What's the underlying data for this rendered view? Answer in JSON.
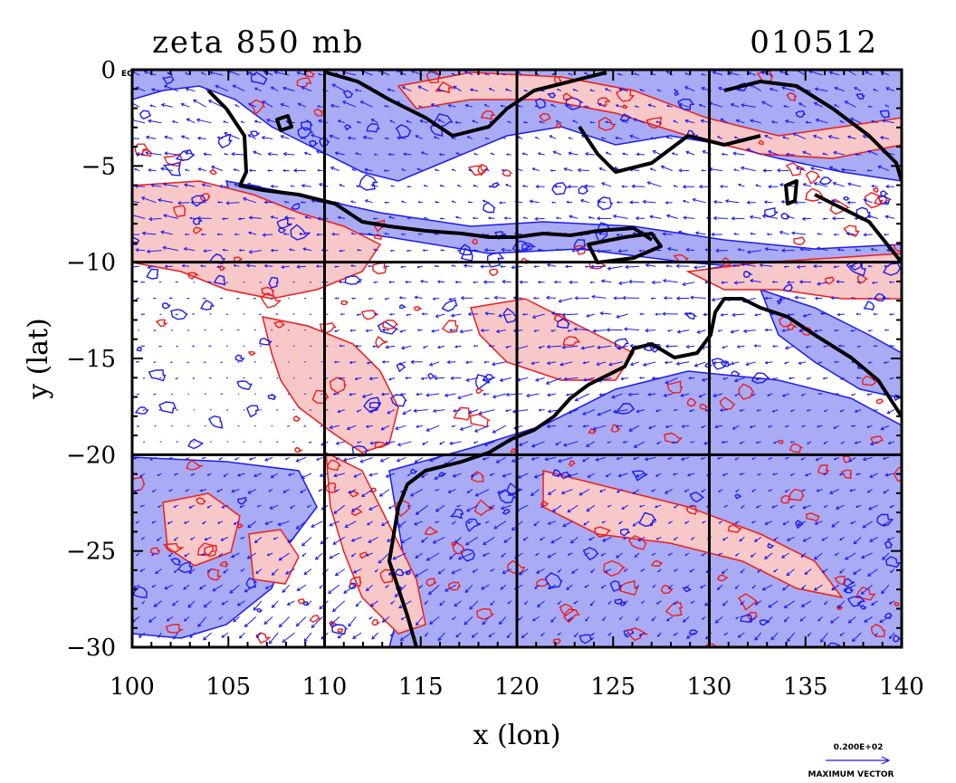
{
  "chart_data": {
    "type": "map",
    "title": "zeta 850 mb",
    "date_label": "010512",
    "xlabel": "x (lon)",
    "ylabel": "y (lat)",
    "xlim": [
      100,
      140
    ],
    "ylim": [
      -30,
      0
    ],
    "x_ticks": [
      100,
      105,
      110,
      115,
      120,
      125,
      130,
      135,
      140
    ],
    "y_ticks": [
      0,
      -5,
      -10,
      -15,
      -20,
      -25,
      -30
    ],
    "x_tick_labels": [
      "100",
      "105",
      "110",
      "115",
      "120",
      "125",
      "130",
      "135",
      "140"
    ],
    "y_tick_labels": [
      "0",
      "−5",
      "−10",
      "−15",
      "−20",
      "−25",
      "−30"
    ],
    "equator_label": "EQ",
    "grid_lon": [
      110,
      120,
      130
    ],
    "grid_lat": [
      -10,
      -20
    ],
    "grid": true,
    "fields": {
      "positive_zeta": {
        "line_color": "#ee1c1c",
        "fill_color": "#f8c8c8"
      },
      "negative_zeta": {
        "line_color": "#1c1cee",
        "fill_color": "#a9acf5"
      }
    },
    "vector_color": "#1c1cee",
    "coast_color": "#000000",
    "vector_legend": {
      "magnitude": "0.200E+02",
      "label": "MAXIMUM VECTOR"
    }
  }
}
